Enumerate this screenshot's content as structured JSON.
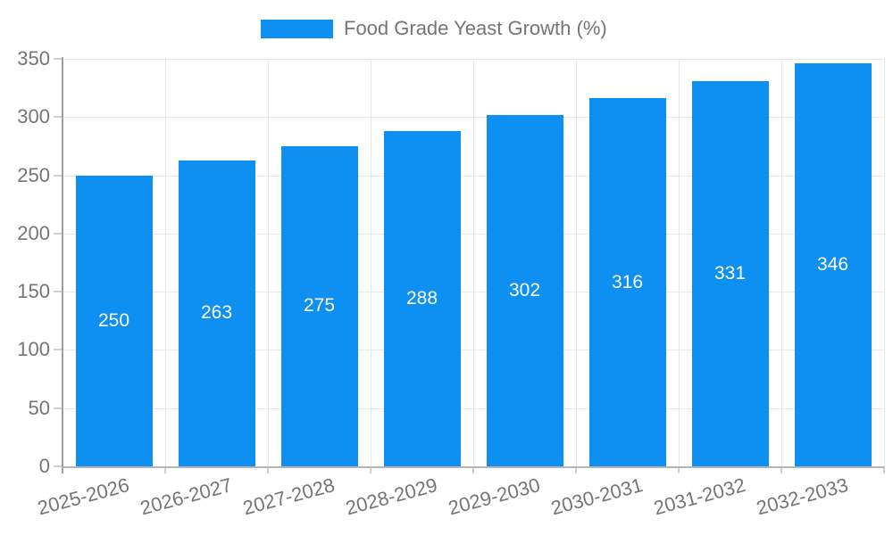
{
  "legend": {
    "label": "Food Grade Yeast Growth (%)",
    "position": "top"
  },
  "colors": {
    "bar": "#0d90f2",
    "label_text": "#757575",
    "grid": "#e8e8e8",
    "axis": "#9e9e9e",
    "value_label": "#ffffff"
  },
  "chart_data": {
    "type": "bar",
    "title": "Food Grade Yeast Growth (%)",
    "categories": [
      "2025-2026",
      "2026-2027",
      "2027-2028",
      "2028-2029",
      "2029-2030",
      "2030-2031",
      "2031-2032",
      "2032-2033"
    ],
    "values": [
      250,
      263,
      275,
      288,
      302,
      316,
      331,
      346
    ],
    "xlabel": "",
    "ylabel": "",
    "ylim": [
      0,
      350
    ],
    "ytick_step": 50,
    "yticks": [
      0,
      50,
      100,
      150,
      200,
      250,
      300,
      350
    ],
    "grid": true,
    "legend_position": "top",
    "value_labels_inside_bars": true,
    "x_label_rotation_deg": -15
  }
}
